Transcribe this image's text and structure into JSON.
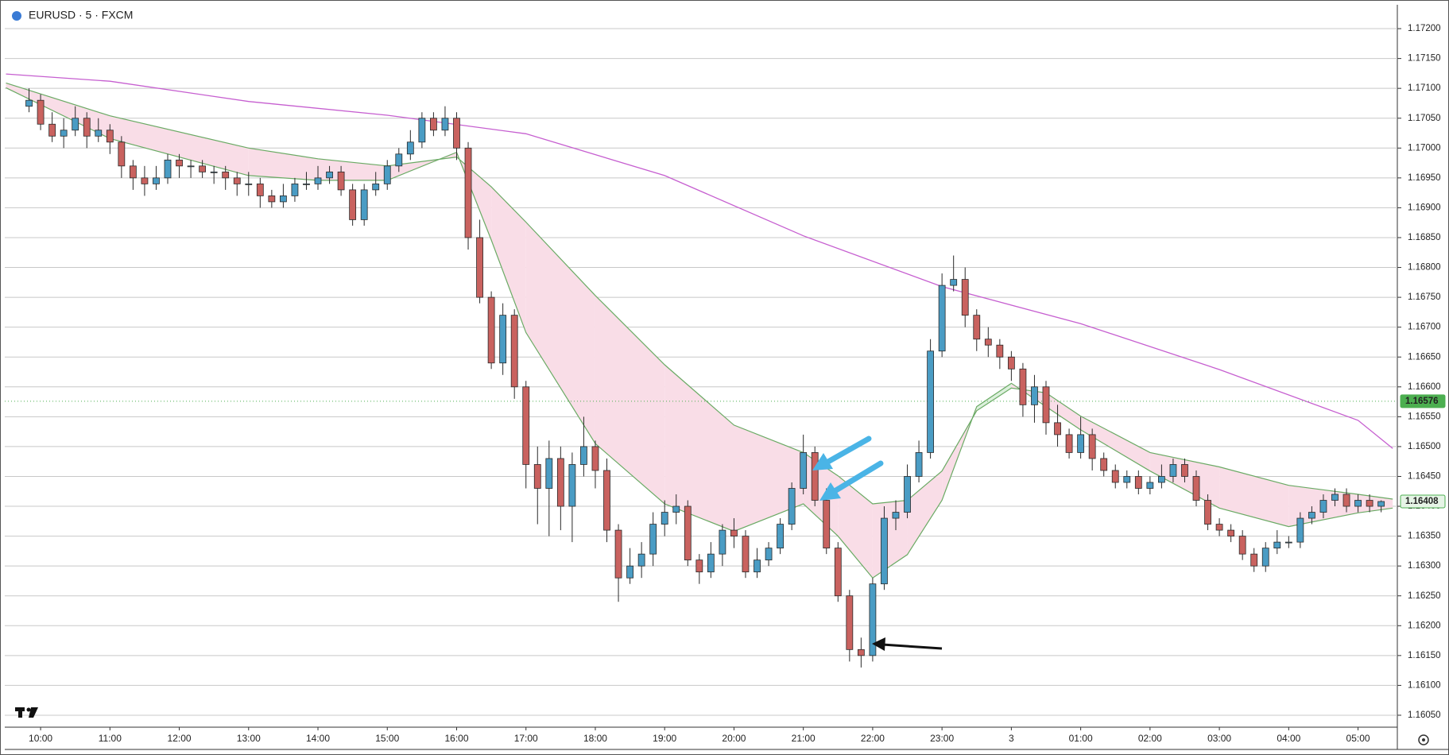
{
  "chart_data": {
    "type": "candlestick",
    "title": "EURUSD · 5 · FXCM",
    "up_color": "#4a9cc4",
    "down_color": "#c9625f",
    "border_color": "#2a2a2a",
    "grid": true,
    "xlim": [
      -2.1,
      118.4
    ],
    "ylim": [
      1.1603,
      1.1724
    ],
    "xticks": [
      {
        "value": 1,
        "label": "10:00"
      },
      {
        "value": 7,
        "label": "11:00"
      },
      {
        "value": 13,
        "label": "12:00"
      },
      {
        "value": 19,
        "label": "13:00"
      },
      {
        "value": 25,
        "label": "14:00"
      },
      {
        "value": 31,
        "label": "15:00"
      },
      {
        "value": 37,
        "label": "16:00"
      },
      {
        "value": 43,
        "label": "17:00"
      },
      {
        "value": 49,
        "label": "18:00"
      },
      {
        "value": 55,
        "label": "19:00"
      },
      {
        "value": 61,
        "label": "20:00"
      },
      {
        "value": 67,
        "label": "21:00"
      },
      {
        "value": 73,
        "label": "22:00"
      },
      {
        "value": 79,
        "label": "23:00"
      },
      {
        "value": 85,
        "label": "3"
      },
      {
        "value": 91,
        "label": "01:00"
      },
      {
        "value": 97,
        "label": "02:00"
      },
      {
        "value": 103,
        "label": "03:00"
      },
      {
        "value": 109,
        "label": "04:00"
      },
      {
        "value": 115,
        "label": "05:00"
      }
    ],
    "yticks": [
      {
        "value": 1.1605,
        "label": "1.16050"
      },
      {
        "value": 1.161,
        "label": "1.16100"
      },
      {
        "value": 1.1615,
        "label": "1.16150"
      },
      {
        "value": 1.162,
        "label": "1.16200"
      },
      {
        "value": 1.1625,
        "label": "1.16250"
      },
      {
        "value": 1.163,
        "label": "1.16300"
      },
      {
        "value": 1.1635,
        "label": "1.16350"
      },
      {
        "value": 1.164,
        "label": "1.16400"
      },
      {
        "value": 1.1645,
        "label": "1.16450"
      },
      {
        "value": 1.165,
        "label": "1.16500"
      },
      {
        "value": 1.1655,
        "label": "1.16550"
      },
      {
        "value": 1.166,
        "label": "1.16600"
      },
      {
        "value": 1.1665,
        "label": "1.16650"
      },
      {
        "value": 1.167,
        "label": "1.16700"
      },
      {
        "value": 1.1675,
        "label": "1.16750"
      },
      {
        "value": 1.168,
        "label": "1.16800"
      },
      {
        "value": 1.1685,
        "label": "1.16850"
      },
      {
        "value": 1.169,
        "label": "1.16900"
      },
      {
        "value": 1.1695,
        "label": "1.16950"
      },
      {
        "value": 1.17,
        "label": "1.17000"
      },
      {
        "value": 1.1705,
        "label": "1.17050"
      },
      {
        "value": 1.171,
        "label": "1.17100"
      },
      {
        "value": 1.1715,
        "label": "1.17150"
      },
      {
        "value": 1.172,
        "label": "1.17200"
      }
    ],
    "open": [
      1.1707,
      1.1708,
      1.1704,
      1.1702,
      1.1703,
      1.1705,
      1.1702,
      1.1703,
      1.1701,
      1.1697,
      1.1695,
      1.1694,
      1.1695,
      1.1698,
      1.1697,
      1.1697,
      1.1696,
      1.1696,
      1.1695,
      1.1694,
      1.1694,
      1.1692,
      1.1691,
      1.1692,
      1.1694,
      1.1694,
      1.1695,
      1.1696,
      1.1693,
      1.1688,
      1.1693,
      1.1694,
      1.1697,
      1.1699,
      1.1701,
      1.1705,
      1.1703,
      1.1705,
      1.17,
      1.1685,
      1.1675,
      1.1664,
      1.1672,
      1.166,
      1.1647,
      1.1643,
      1.1648,
      1.164,
      1.1647,
      1.165,
      1.1646,
      1.1636,
      1.1628,
      1.163,
      1.1632,
      1.1637,
      1.1639,
      1.164,
      1.1631,
      1.1629,
      1.1632,
      1.1636,
      1.1635,
      1.1629,
      1.1631,
      1.1633,
      1.1637,
      1.1643,
      1.1649,
      1.1641,
      1.1633,
      1.1625,
      1.1616,
      1.1615,
      1.1627,
      1.1638,
      1.1639,
      1.1645,
      1.1649,
      1.1666,
      1.1677,
      1.1678,
      1.1672,
      1.1668,
      1.1667,
      1.1665,
      1.1663,
      1.1657,
      1.166,
      1.1654,
      1.1652,
      1.1649,
      1.1652,
      1.1648,
      1.1646,
      1.1644,
      1.1645,
      1.1643,
      1.1644,
      1.1645,
      1.1647,
      1.1645,
      1.1641,
      1.1637,
      1.1636,
      1.1635,
      1.1632,
      1.163,
      1.1633,
      1.1634,
      1.1634,
      1.1638,
      1.1639,
      1.1641,
      1.1642,
      1.164,
      1.1641,
      1.164
    ],
    "high": [
      1.171,
      1.1709,
      1.1706,
      1.1705,
      1.1707,
      1.1706,
      1.1705,
      1.1704,
      1.1702,
      1.1698,
      1.1697,
      1.1697,
      1.1699,
      1.1699,
      1.1698,
      1.1698,
      1.1697,
      1.1697,
      1.1696,
      1.1696,
      1.1695,
      1.1693,
      1.1694,
      1.1695,
      1.1696,
      1.1697,
      1.1697,
      1.1697,
      1.1694,
      1.1694,
      1.1696,
      1.1698,
      1.17,
      1.1703,
      1.1706,
      1.1706,
      1.1707,
      1.1706,
      1.1701,
      1.1688,
      1.1676,
      1.1674,
      1.1673,
      1.1661,
      1.165,
      1.1651,
      1.165,
      1.1649,
      1.1655,
      1.1651,
      1.1648,
      1.1637,
      1.1633,
      1.1634,
      1.1639,
      1.1641,
      1.1642,
      1.1641,
      1.1632,
      1.1634,
      1.1637,
      1.1638,
      1.1636,
      1.1633,
      1.1634,
      1.1638,
      1.1644,
      1.1652,
      1.165,
      1.1643,
      1.1634,
      1.1626,
      1.1618,
      1.1628,
      1.164,
      1.1641,
      1.1647,
      1.1651,
      1.1668,
      1.1679,
      1.1682,
      1.168,
      1.1673,
      1.167,
      1.1668,
      1.1666,
      1.1664,
      1.1662,
      1.1661,
      1.1657,
      1.1653,
      1.1655,
      1.1653,
      1.1649,
      1.1647,
      1.1646,
      1.1646,
      1.1645,
      1.1647,
      1.1648,
      1.1648,
      1.1646,
      1.1642,
      1.1638,
      1.1637,
      1.1636,
      1.1633,
      1.1634,
      1.1636,
      1.1635,
      1.1639,
      1.164,
      1.1642,
      1.1643,
      1.1643,
      1.1642,
      1.1642,
      1.1641
    ],
    "low": [
      1.1706,
      1.1703,
      1.1701,
      1.17,
      1.1702,
      1.17,
      1.1701,
      1.1699,
      1.1695,
      1.1693,
      1.1692,
      1.1693,
      1.1694,
      1.1695,
      1.1695,
      1.1695,
      1.1694,
      1.1693,
      1.1692,
      1.1692,
      1.169,
      1.169,
      1.169,
      1.1691,
      1.1693,
      1.1693,
      1.1694,
      1.1692,
      1.1687,
      1.1687,
      1.1692,
      1.1693,
      1.1696,
      1.1698,
      1.17,
      1.1702,
      1.1702,
      1.1698,
      1.1683,
      1.1674,
      1.1663,
      1.1662,
      1.1658,
      1.1643,
      1.1637,
      1.1635,
      1.1636,
      1.1634,
      1.1645,
      1.1643,
      1.1634,
      1.1624,
      1.1627,
      1.1628,
      1.163,
      1.1635,
      1.1637,
      1.163,
      1.1627,
      1.1628,
      1.163,
      1.1633,
      1.1628,
      1.1628,
      1.163,
      1.1632,
      1.1636,
      1.1642,
      1.164,
      1.1632,
      1.1624,
      1.1614,
      1.1613,
      1.1614,
      1.1626,
      1.1636,
      1.1638,
      1.1644,
      1.1648,
      1.1665,
      1.1676,
      1.167,
      1.1666,
      1.1665,
      1.1663,
      1.1661,
      1.1655,
      1.1654,
      1.1652,
      1.165,
      1.1648,
      1.1648,
      1.1646,
      1.1645,
      1.1643,
      1.1643,
      1.1642,
      1.1642,
      1.1643,
      1.1644,
      1.1644,
      1.164,
      1.1636,
      1.1635,
      1.1634,
      1.1631,
      1.1629,
      1.1629,
      1.1632,
      1.1633,
      1.1633,
      1.1637,
      1.1638,
      1.164,
      1.1639,
      1.1639,
      1.1639,
      1.1639
    ],
    "close": [
      1.1708,
      1.1704,
      1.1702,
      1.1703,
      1.1705,
      1.1702,
      1.1703,
      1.1701,
      1.1697,
      1.1695,
      1.1694,
      1.1695,
      1.1698,
      1.1697,
      1.1697,
      1.1696,
      1.1696,
      1.1695,
      1.1694,
      1.1694,
      1.1692,
      1.1691,
      1.1692,
      1.1694,
      1.1694,
      1.1695,
      1.1696,
      1.1693,
      1.1688,
      1.1693,
      1.1694,
      1.1697,
      1.1699,
      1.1701,
      1.1705,
      1.1703,
      1.1705,
      1.17,
      1.1685,
      1.1675,
      1.1664,
      1.1672,
      1.166,
      1.1647,
      1.1643,
      1.1648,
      1.164,
      1.1647,
      1.165,
      1.1646,
      1.1636,
      1.1628,
      1.163,
      1.1632,
      1.1637,
      1.1639,
      1.164,
      1.1631,
      1.1629,
      1.1632,
      1.1636,
      1.1635,
      1.1629,
      1.1631,
      1.1633,
      1.1637,
      1.1643,
      1.1649,
      1.1641,
      1.1633,
      1.1625,
      1.1616,
      1.1615,
      1.1627,
      1.1638,
      1.1639,
      1.1645,
      1.1649,
      1.1666,
      1.1677,
      1.1678,
      1.1672,
      1.1668,
      1.1667,
      1.1665,
      1.1663,
      1.1657,
      1.166,
      1.1654,
      1.1652,
      1.1649,
      1.1652,
      1.1648,
      1.1646,
      1.1644,
      1.1645,
      1.1643,
      1.1644,
      1.1645,
      1.1647,
      1.1645,
      1.1641,
      1.1637,
      1.1636,
      1.1635,
      1.1632,
      1.163,
      1.1633,
      1.1634,
      1.1634,
      1.1638,
      1.1639,
      1.1641,
      1.1642,
      1.164,
      1.1641,
      1.164,
      1.16408
    ],
    "sma": {
      "color": "#c65fd0",
      "x": [
        -2,
        7,
        19,
        31,
        43,
        55,
        67,
        79,
        91,
        103,
        115,
        118
      ],
      "values": [
        1.17124,
        1.17112,
        1.17078,
        1.17055,
        1.17024,
        1.16954,
        1.16853,
        1.16768,
        1.16706,
        1.16629,
        1.16544,
        1.16497
      ]
    },
    "ribbon": {
      "line_color": "#6aaa64",
      "fill_up": "#dcf0dc",
      "fill_down": "#f9dde7",
      "x": [
        -2,
        7,
        19,
        25,
        31,
        37,
        40,
        43,
        49,
        55,
        61,
        67,
        70,
        73,
        76,
        79,
        82,
        85,
        88,
        91,
        97,
        103,
        109,
        115,
        118
      ],
      "fast": [
        1.17101,
        1.17016,
        1.16954,
        1.16946,
        1.16946,
        1.16993,
        1.16846,
        1.16691,
        1.16505,
        1.16404,
        1.16358,
        1.16404,
        1.1635,
        1.1628,
        1.16319,
        1.1641,
        1.16567,
        1.16606,
        1.16567,
        1.16528,
        1.16459,
        1.16397,
        1.16366,
        1.16389,
        1.16397
      ],
      "slow": [
        1.17109,
        1.17054,
        1.17,
        1.16982,
        1.1697,
        1.16985,
        1.16935,
        1.16876,
        1.16753,
        1.16637,
        1.16536,
        1.1649,
        1.16451,
        1.16404,
        1.1641,
        1.16459,
        1.1656,
        1.16598,
        1.1659,
        1.16551,
        1.1649,
        1.16466,
        1.16435,
        1.1642,
        1.16412
      ]
    },
    "price_markers": [
      {
        "value": 1.16576,
        "color": "#4caf50",
        "text_color": "#ffffff"
      },
      {
        "value": 1.16408,
        "color": "#e6f4e6",
        "text_color": "#2e7d32"
      }
    ]
  }
}
